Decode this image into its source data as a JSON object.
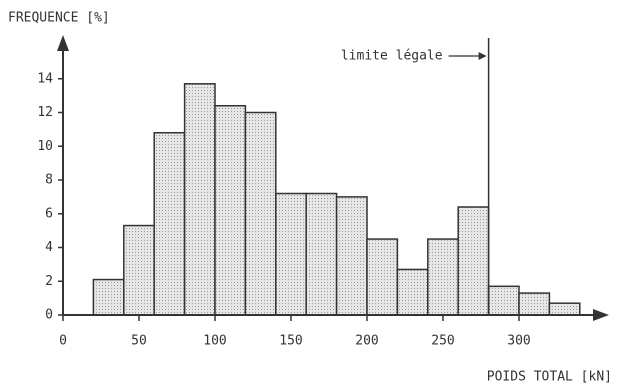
{
  "chart_data": {
    "type": "histogram",
    "title": "FREQUENCE [%]",
    "x_label": "POIDS TOTAL [kN]",
    "bins": [
      20,
      40,
      60,
      80,
      100,
      120,
      140,
      160,
      180,
      200,
      220,
      240,
      260,
      280,
      300,
      320,
      340
    ],
    "values": [
      2.1,
      5.3,
      10.8,
      13.7,
      12.4,
      12.0,
      7.2,
      7.2,
      7.0,
      4.5,
      2.7,
      4.5,
      6.4,
      1.7,
      1.3,
      0.7
    ],
    "color": "#d9d9d9",
    "xlim": [
      0,
      350
    ],
    "xticks": [
      0,
      50,
      100,
      150,
      200,
      250,
      300
    ],
    "ylim": [
      0,
      16
    ],
    "yticks": [
      0,
      2,
      4,
      6,
      8,
      10,
      12,
      14
    ],
    "grid": false,
    "annotations": [
      {
        "text": "limite légale",
        "x": 280
      }
    ]
  }
}
